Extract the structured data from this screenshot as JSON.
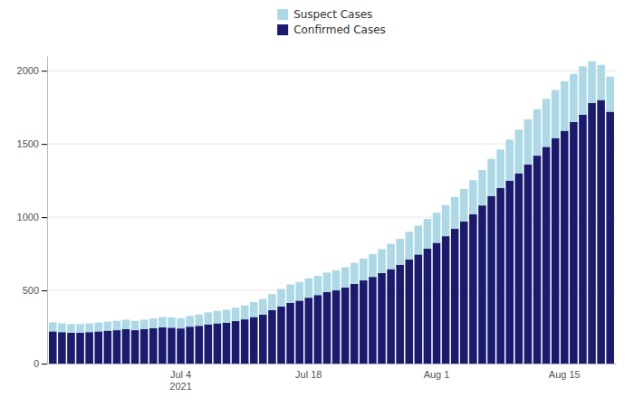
{
  "chart_data": {
    "type": "bar",
    "stacked": true,
    "categories": [
      null,
      null,
      null,
      null,
      null,
      null,
      null,
      null,
      null,
      null,
      null,
      null,
      null,
      null,
      "Jul 4\n2021",
      null,
      null,
      null,
      null,
      null,
      null,
      null,
      null,
      null,
      null,
      null,
      null,
      null,
      "Jul 18",
      null,
      null,
      null,
      null,
      null,
      null,
      null,
      null,
      null,
      null,
      null,
      null,
      null,
      "Aug 1",
      null,
      null,
      null,
      null,
      null,
      null,
      null,
      null,
      null,
      null,
      null,
      null,
      null,
      "Aug 15",
      null,
      null,
      null,
      null,
      null
    ],
    "series": [
      {
        "name": "Confirmed Cases",
        "color": "#1a1a6e",
        "values": [
          220,
          215,
          210,
          210,
          215,
          220,
          225,
          228,
          235,
          228,
          235,
          242,
          248,
          245,
          240,
          252,
          258,
          268,
          275,
          278,
          290,
          302,
          318,
          335,
          365,
          390,
          415,
          430,
          450,
          468,
          488,
          500,
          520,
          545,
          568,
          592,
          618,
          645,
          675,
          710,
          745,
          785,
          825,
          870,
          920,
          970,
          1020,
          1080,
          1145,
          1200,
          1250,
          1300,
          1360,
          1420,
          1480,
          1540,
          1590,
          1650,
          1700,
          1780,
          1800,
          1720
        ]
      },
      {
        "name": "Suspect Cases",
        "color": "#add8e6",
        "values": [
          62,
          60,
          60,
          60,
          60,
          60,
          61,
          64,
          65,
          64,
          65,
          66,
          70,
          71,
          70,
          73,
          77,
          82,
          85,
          90,
          92,
          96,
          102,
          107,
          110,
          120,
          125,
          128,
          132,
          132,
          134,
          138,
          138,
          143,
          150,
          156,
          164,
          173,
          177,
          190,
          197,
          203,
          205,
          212,
          218,
          222,
          232,
          242,
          253,
          262,
          280,
          298,
          308,
          318,
          328,
          328,
          338,
          328,
          330,
          285,
          240,
          240
        ]
      }
    ],
    "ylim": [
      0,
      2100
    ],
    "yticks": [
      0,
      500,
      1000,
      1500,
      2000
    ],
    "grid": true,
    "legend": "top"
  }
}
